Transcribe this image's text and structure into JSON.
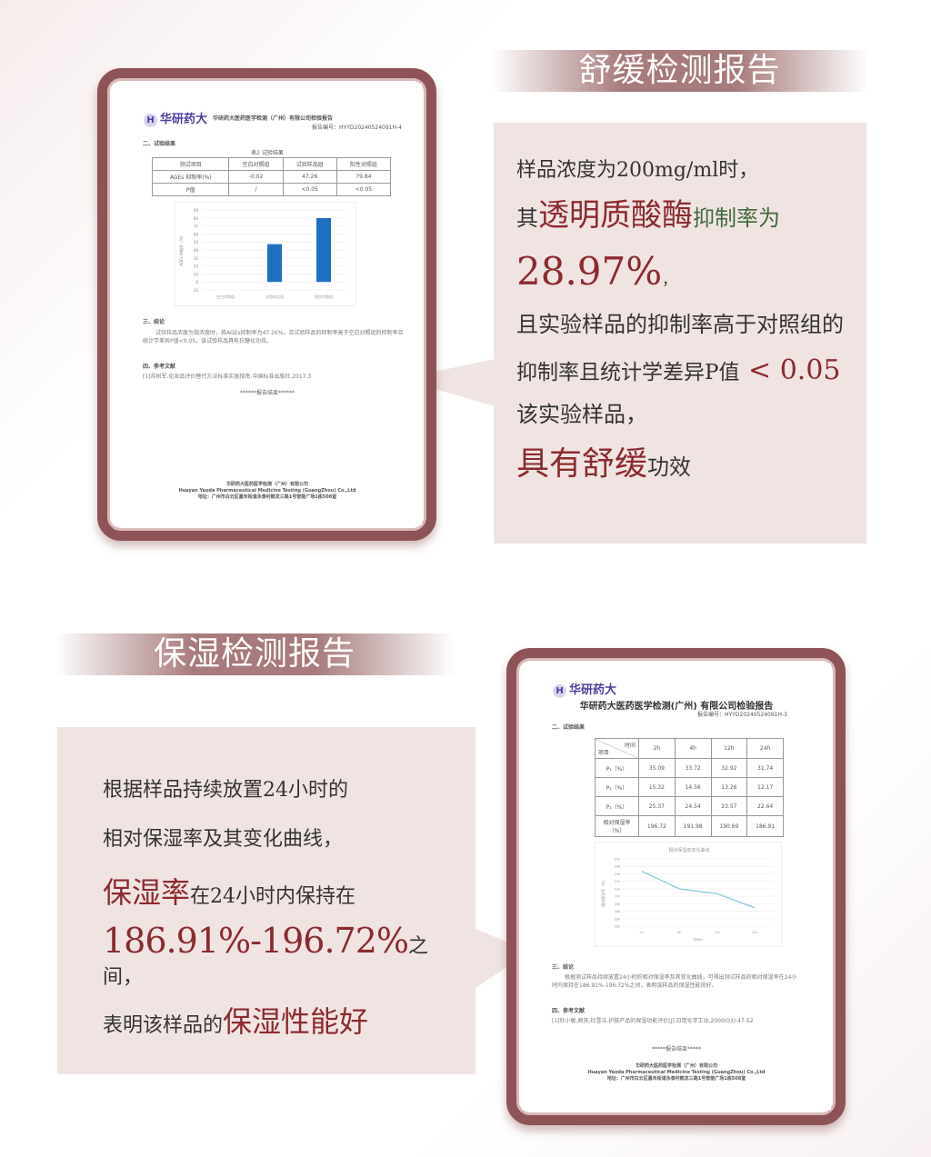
{
  "section1": {
    "banner": "舒缓检测报告",
    "text": {
      "l1": "样品浓度为200mg/ml时，",
      "l2a": "其",
      "l2b": "透明质酸酶",
      "l2c": "抑制率为",
      "l3": "28.97%",
      "l3b": "，",
      "l4": "且实验样品的抑制率高于对照组的",
      "l5a": "抑制率且统计学差异P值",
      "l5b": " < 0.05",
      "l6": "该实验样品，",
      "l7a": "具有舒缓",
      "l7b": "功效"
    },
    "doc": {
      "logo": "华研药大",
      "company": "华研药大医药医学检测（广州）有限公司检验报告",
      "report_no": "报告编号：HYYD20240524091H-4",
      "sec2": "二、试验结果",
      "table_title": "表2 试验结果",
      "headers": [
        "测试项目",
        "空白对照组",
        "试验样品组",
        "阳性对照组"
      ],
      "rows": [
        [
          "AGEs 抑制率(%)",
          "-0.02",
          "47.26",
          "79.84"
        ],
        [
          "P值",
          "/",
          "<0.05",
          "<0.05"
        ]
      ],
      "chart_data": {
        "type": "bar",
        "categories": [
          "空白对照组",
          "试验样品组",
          "阳性对照组"
        ],
        "values": [
          -0.02,
          47.26,
          79.84
        ],
        "ylabel": "AGEs 抑制率（%）",
        "ylim": [
          -10,
          90
        ],
        "yticks": [
          "90",
          "80",
          "70",
          "60",
          "50",
          "40",
          "30",
          "20",
          "10",
          "0",
          "-10"
        ]
      },
      "sec3": "三、结论",
      "conclusion": "试验样品浓度为指浓度时，其AGEs抑制率为47.26%，且试验样品的抑制率高于空白对照组的抑制率且统计学差异P值<0.05，该试验样品具有抗糖化功效。",
      "sec4": "四、参考文献",
      "ref": "[1]苏树军.化妆品评价替代方法标准实施指南.中国标准出版社,2017.3",
      "end": "******报告结束******",
      "footer": [
        "华研药大医药医学检测（广州）有限公司",
        "Huayan Yaoda Pharmaceutical Medicine Testing (GuangZhou) Co.,Ltd",
        "地址：广州市白云区嘉禾街道永泰村鹤龙三路1号智能广场1栋508室"
      ]
    }
  },
  "section2": {
    "banner": "保湿检测报告",
    "text": {
      "l1": "根据样品持续放置24小时的",
      "l2": "相对保湿率及其变化曲线，",
      "l3a": "保湿率",
      "l3b": "在24小时内保持在",
      "l4a": "186.91%-196.72%",
      "l4b": "之间，",
      "l5a": "表明该样品的",
      "l5b": "保湿性能好"
    },
    "doc": {
      "logo": "华研药大",
      "company": "华研药大医药医学检测(广州) 有限公司检验报告",
      "report_no": "报告编号：HYYD20240524091H-3",
      "sec2": "二、试验结果",
      "corner_top": "时间",
      "corner_bottom": "项目",
      "headers": [
        "2h",
        "4h",
        "12h",
        "24h"
      ],
      "rows": [
        [
          "P₁（%）",
          "35.09",
          "33.72",
          "32.92",
          "31.74"
        ],
        [
          "P₂（%）",
          "15.32",
          "14.56",
          "13.26",
          "12.17"
        ],
        [
          "P₃（%）",
          "25.37",
          "24.54",
          "23.57",
          "22.64"
        ],
        [
          "相对保湿率（%）",
          "196.72",
          "191.98",
          "190.69",
          "186.91"
        ]
      ],
      "chart_data": {
        "type": "line",
        "title": "相对保湿度变化曲线",
        "x": [
          "2h",
          "4h",
          "12h",
          "24h"
        ],
        "values": [
          196.72,
          191.98,
          190.69,
          186.91
        ],
        "xlabel": "时间/h",
        "ylabel": "相对保湿率（%）",
        "ylim": [
          182,
          200
        ]
      },
      "sec3": "三、结论",
      "conclusion": "根据测试样品持续放置24小时的相对保湿率及其变化曲线，可得出测试样品的相对保湿率在24小时内保持在186.91%-196.72%之间，表明该样品的保湿性能良好。",
      "sec4": "四、参考文献",
      "ref": "[1]杜小敏,郭庆,杜雪洁.护肤产品的保湿功能评价[J].日用化学工业,2000(03):47-52",
      "end": "*****报告结束*****",
      "footer": [
        "华研药大医药医学检测（广州）有限公司",
        "Huayan Yaoda Pharmaceutical Medicine Testing (GuangZhou) Co.,Ltd",
        "地址：广州市白云区嘉禾街道永泰村鹤龙三路1号智能广场1栋508室"
      ]
    }
  },
  "colors": {
    "frame": "#8e5356",
    "banner": "#a77a7b",
    "box": "#f0e4e2",
    "highlight": "#8b2a2f",
    "bar": "#1f6fc4",
    "line": "#7fc4d6"
  }
}
